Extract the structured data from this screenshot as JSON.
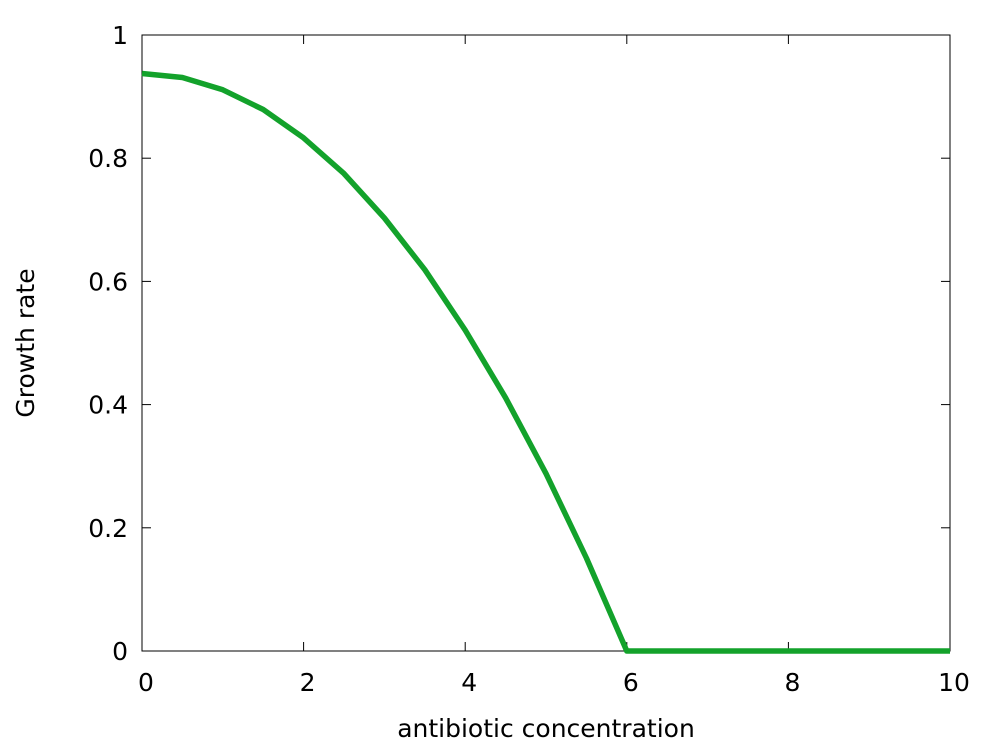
{
  "chart_data": {
    "type": "line",
    "title": "",
    "xlabel": "antibiotic concentration",
    "ylabel": "Growth rate",
    "xlim": [
      0,
      10
    ],
    "ylim": [
      0,
      1
    ],
    "xticks": [
      0,
      2,
      4,
      6,
      8,
      10
    ],
    "yticks": [
      0,
      0.2,
      0.4,
      0.6,
      0.8,
      1
    ],
    "xtick_labels": [
      "0",
      "2",
      "4",
      "6",
      "8",
      "10"
    ],
    "ytick_labels": [
      "0",
      "0.2",
      "0.4",
      "0.6",
      "0.8",
      "1"
    ],
    "grid": false,
    "legend": "none",
    "series": [
      {
        "color": "#13a22b",
        "x": [
          0,
          0.5,
          1,
          1.5,
          2,
          2.5,
          3,
          3.5,
          4,
          4.5,
          5,
          5.5,
          6,
          6.5,
          7,
          7.5,
          8,
          8.5,
          9,
          9.5,
          10
        ],
        "y": [
          0.9375,
          0.931,
          0.911,
          0.879,
          0.833,
          0.775,
          0.703,
          0.619,
          0.521,
          0.411,
          0.288,
          0.151,
          0,
          0,
          0,
          0,
          0,
          0,
          0,
          0,
          0
        ]
      }
    ]
  }
}
